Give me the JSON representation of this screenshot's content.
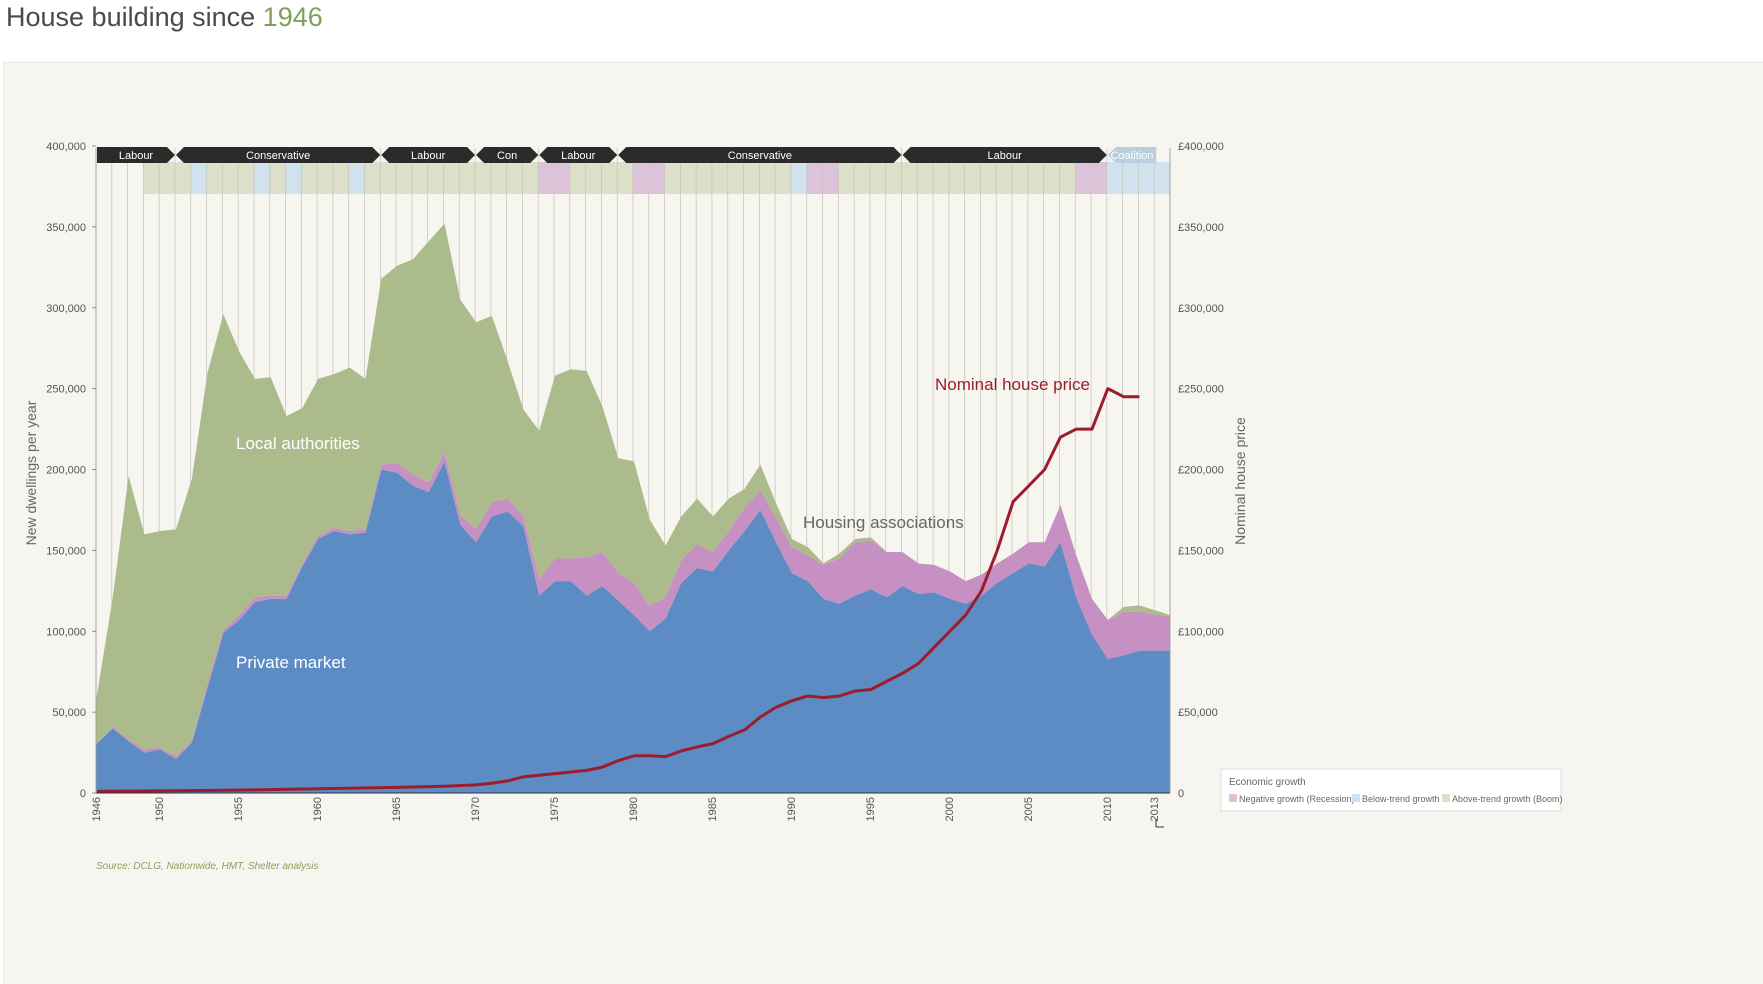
{
  "page": {
    "title_prefix": "House building since ",
    "title_year": "1946",
    "source": "Source: DCLG, Nationwide, HMT, Shelter analysis"
  },
  "colors": {
    "private_market": "#5d8bc3",
    "housing_associations": "#c690c3",
    "local_authorities": "#abbb8b",
    "house_price": "#9b1c2a",
    "recession": "#dcc3da",
    "below_trend": "#cfe2ee",
    "boom": "#dde0c8",
    "party_bar": "#2b2b2b",
    "coalition_bar": "#b9cfdf",
    "title_accent": "#7f9f5a"
  },
  "chart_data": {
    "type": "area",
    "x": [
      1946,
      1947,
      1948,
      1949,
      1950,
      1951,
      1952,
      1953,
      1954,
      1955,
      1956,
      1957,
      1958,
      1959,
      1960,
      1961,
      1962,
      1963,
      1964,
      1965,
      1966,
      1967,
      1968,
      1969,
      1970,
      1971,
      1972,
      1973,
      1974,
      1975,
      1976,
      1977,
      1978,
      1979,
      1980,
      1981,
      1982,
      1983,
      1984,
      1985,
      1986,
      1987,
      1988,
      1989,
      1990,
      1991,
      1992,
      1993,
      1994,
      1995,
      1996,
      1997,
      1998,
      1999,
      2000,
      2001,
      2002,
      2003,
      2004,
      2005,
      2006,
      2007,
      2008,
      2009,
      2010,
      2011,
      2012,
      2013
    ],
    "series": [
      {
        "name": "Private market",
        "values": [
          30000,
          40000,
          32000,
          25000,
          27000,
          21000,
          31000,
          65000,
          99000,
          107000,
          118000,
          120000,
          120000,
          140000,
          157000,
          162000,
          160000,
          161000,
          200000,
          198000,
          190000,
          186000,
          205000,
          166000,
          155000,
          171000,
          174000,
          165000,
          122000,
          131000,
          131000,
          122000,
          128000,
          119000,
          110000,
          100000,
          108000,
          130000,
          139000,
          137000,
          150000,
          162000,
          175000,
          155000,
          136000,
          131000,
          120000,
          117000,
          122000,
          126000,
          121000,
          128000,
          123000,
          124000,
          120000,
          117000,
          122000,
          130000,
          136000,
          142000,
          140000,
          155000,
          121000,
          98000,
          83000,
          85000,
          88000,
          88000
        ]
      },
      {
        "name": "Housing associations",
        "values": [
          0,
          1000,
          1000,
          2000,
          1000,
          2000,
          1000,
          3000,
          2000,
          3000,
          3000,
          2000,
          2000,
          2000,
          2000,
          2000,
          2000,
          2000,
          3000,
          6000,
          7000,
          6000,
          6000,
          6000,
          8000,
          9000,
          8000,
          6000,
          10000,
          14000,
          14000,
          24000,
          21000,
          17000,
          20000,
          16000,
          13000,
          14000,
          15000,
          12000,
          12000,
          14000,
          12000,
          15000,
          16000,
          16000,
          21000,
          28000,
          33000,
          30000,
          28000,
          21000,
          19000,
          17000,
          17000,
          14000,
          13000,
          12000,
          12000,
          13000,
          15000,
          23000,
          26000,
          22000,
          24000,
          27000,
          24000,
          21000
        ]
      },
      {
        "name": "Local authorities",
        "values": [
          27000,
          80000,
          163000,
          133000,
          134000,
          140000,
          162000,
          192000,
          195000,
          163000,
          135000,
          135000,
          111000,
          96000,
          97000,
          95000,
          101000,
          93000,
          115000,
          122000,
          133000,
          149000,
          141000,
          133000,
          128000,
          115000,
          85000,
          66000,
          92000,
          113000,
          117000,
          115000,
          90000,
          71000,
          75000,
          53000,
          32000,
          27000,
          28000,
          22000,
          20000,
          12000,
          16000,
          9000,
          5000,
          5000,
          1000,
          3000,
          2000,
          2000,
          0,
          0,
          0,
          0,
          0,
          0,
          0,
          0,
          0,
          0,
          0,
          0,
          0,
          0,
          0,
          3000,
          4000,
          1000
        ]
      }
    ],
    "house_price": {
      "name": "Nominal house price",
      "x": [
        1946,
        1950,
        1955,
        1960,
        1965,
        1968,
        1970,
        1971,
        1972,
        1973,
        1974,
        1975,
        1976,
        1977,
        1978,
        1979,
        1980,
        1981,
        1982,
        1983,
        1984,
        1985,
        1986,
        1987,
        1988,
        1989,
        1990,
        1991,
        1992,
        1993,
        1994,
        1995,
        1996,
        1997,
        1998,
        1999,
        2000,
        2001,
        2002,
        2003,
        2004,
        2005,
        2006,
        2007,
        2008,
        2009,
        2010,
        2011,
        2012
      ],
      "values": [
        1000,
        1300,
        1800,
        2600,
        3500,
        4200,
        5000,
        6000,
        7500,
        10000,
        11000,
        12000,
        13000,
        14000,
        16000,
        20000,
        23000,
        23000,
        22500,
        26000,
        28500,
        30500,
        35000,
        39000,
        47000,
        53000,
        57000,
        60000,
        59000,
        60000,
        63000,
        64000,
        69000,
        74000,
        80000,
        90000,
        100000,
        110000,
        125000,
        150000,
        180000,
        190000,
        200000,
        220000,
        225000,
        225000,
        250000,
        245000,
        245000
      ]
    },
    "ylim": [
      0,
      400000
    ],
    "y2lim": [
      0,
      400000
    ],
    "y_ticks": [
      "0",
      "50,000",
      "100,000",
      "150,000",
      "200,000",
      "250,000",
      "300,000",
      "350,000",
      "400,000"
    ],
    "y2_ticks": [
      "0",
      "£50,000",
      "£100,000",
      "£150,000",
      "£200,000",
      "£250,000",
      "£300,000",
      "£350,000",
      "£400,000"
    ],
    "x_ticks": [
      "1946",
      "1950",
      "1955",
      "1960",
      "1965",
      "1970",
      "1975",
      "1980",
      "1985",
      "1990",
      "1995",
      "2000",
      "2005",
      "2010",
      "2013"
    ],
    "ylabel": "New dwellings per year",
    "y2label": "Nominal house price",
    "annotations": [
      "Local authorities",
      "Private market",
      "Housing associations",
      "Nominal house price"
    ],
    "governments": [
      {
        "party": "Labour",
        "start": 1946,
        "end": 1951
      },
      {
        "party": "Conservative",
        "start": 1951,
        "end": 1964
      },
      {
        "party": "Labour",
        "start": 1964,
        "end": 1970
      },
      {
        "party": "Con",
        "start": 1970,
        "end": 1974
      },
      {
        "party": "Labour",
        "start": 1974,
        "end": 1979
      },
      {
        "party": "Conservative",
        "start": 1979,
        "end": 1997
      },
      {
        "party": "Labour",
        "start": 1997,
        "end": 2010
      },
      {
        "party": "Coalition",
        "start": 2010,
        "end": 2013
      }
    ],
    "growth_periods": [
      {
        "type": "boom",
        "start": 1949,
        "end": 1952
      },
      {
        "type": "below",
        "start": 1952,
        "end": 1953
      },
      {
        "type": "boom",
        "start": 1953,
        "end": 1956
      },
      {
        "type": "below",
        "start": 1956,
        "end": 1957
      },
      {
        "type": "boom",
        "start": 1957,
        "end": 1958
      },
      {
        "type": "below",
        "start": 1958,
        "end": 1959
      },
      {
        "type": "boom",
        "start": 1959,
        "end": 1962
      },
      {
        "type": "below",
        "start": 1962,
        "end": 1963
      },
      {
        "type": "boom",
        "start": 1963,
        "end": 1974
      },
      {
        "type": "recession",
        "start": 1974,
        "end": 1976
      },
      {
        "type": "boom",
        "start": 1976,
        "end": 1980
      },
      {
        "type": "recession",
        "start": 1980,
        "end": 1982
      },
      {
        "type": "boom",
        "start": 1982,
        "end": 1990
      },
      {
        "type": "below",
        "start": 1990,
        "end": 1991
      },
      {
        "type": "recession",
        "start": 1991,
        "end": 1993
      },
      {
        "type": "boom",
        "start": 1993,
        "end": 2008
      },
      {
        "type": "recession",
        "start": 2008,
        "end": 2010
      },
      {
        "type": "below",
        "start": 2010,
        "end": 2014
      }
    ],
    "legend": {
      "title": "Economic growth",
      "items": [
        {
          "key": "recession",
          "label": "Negative growth (Recession)"
        },
        {
          "key": "below",
          "label": "Below-trend growth"
        },
        {
          "key": "boom",
          "label": "Above-trend growth (Boom)"
        }
      ],
      "placement": "bottom-right"
    },
    "grid": true
  }
}
